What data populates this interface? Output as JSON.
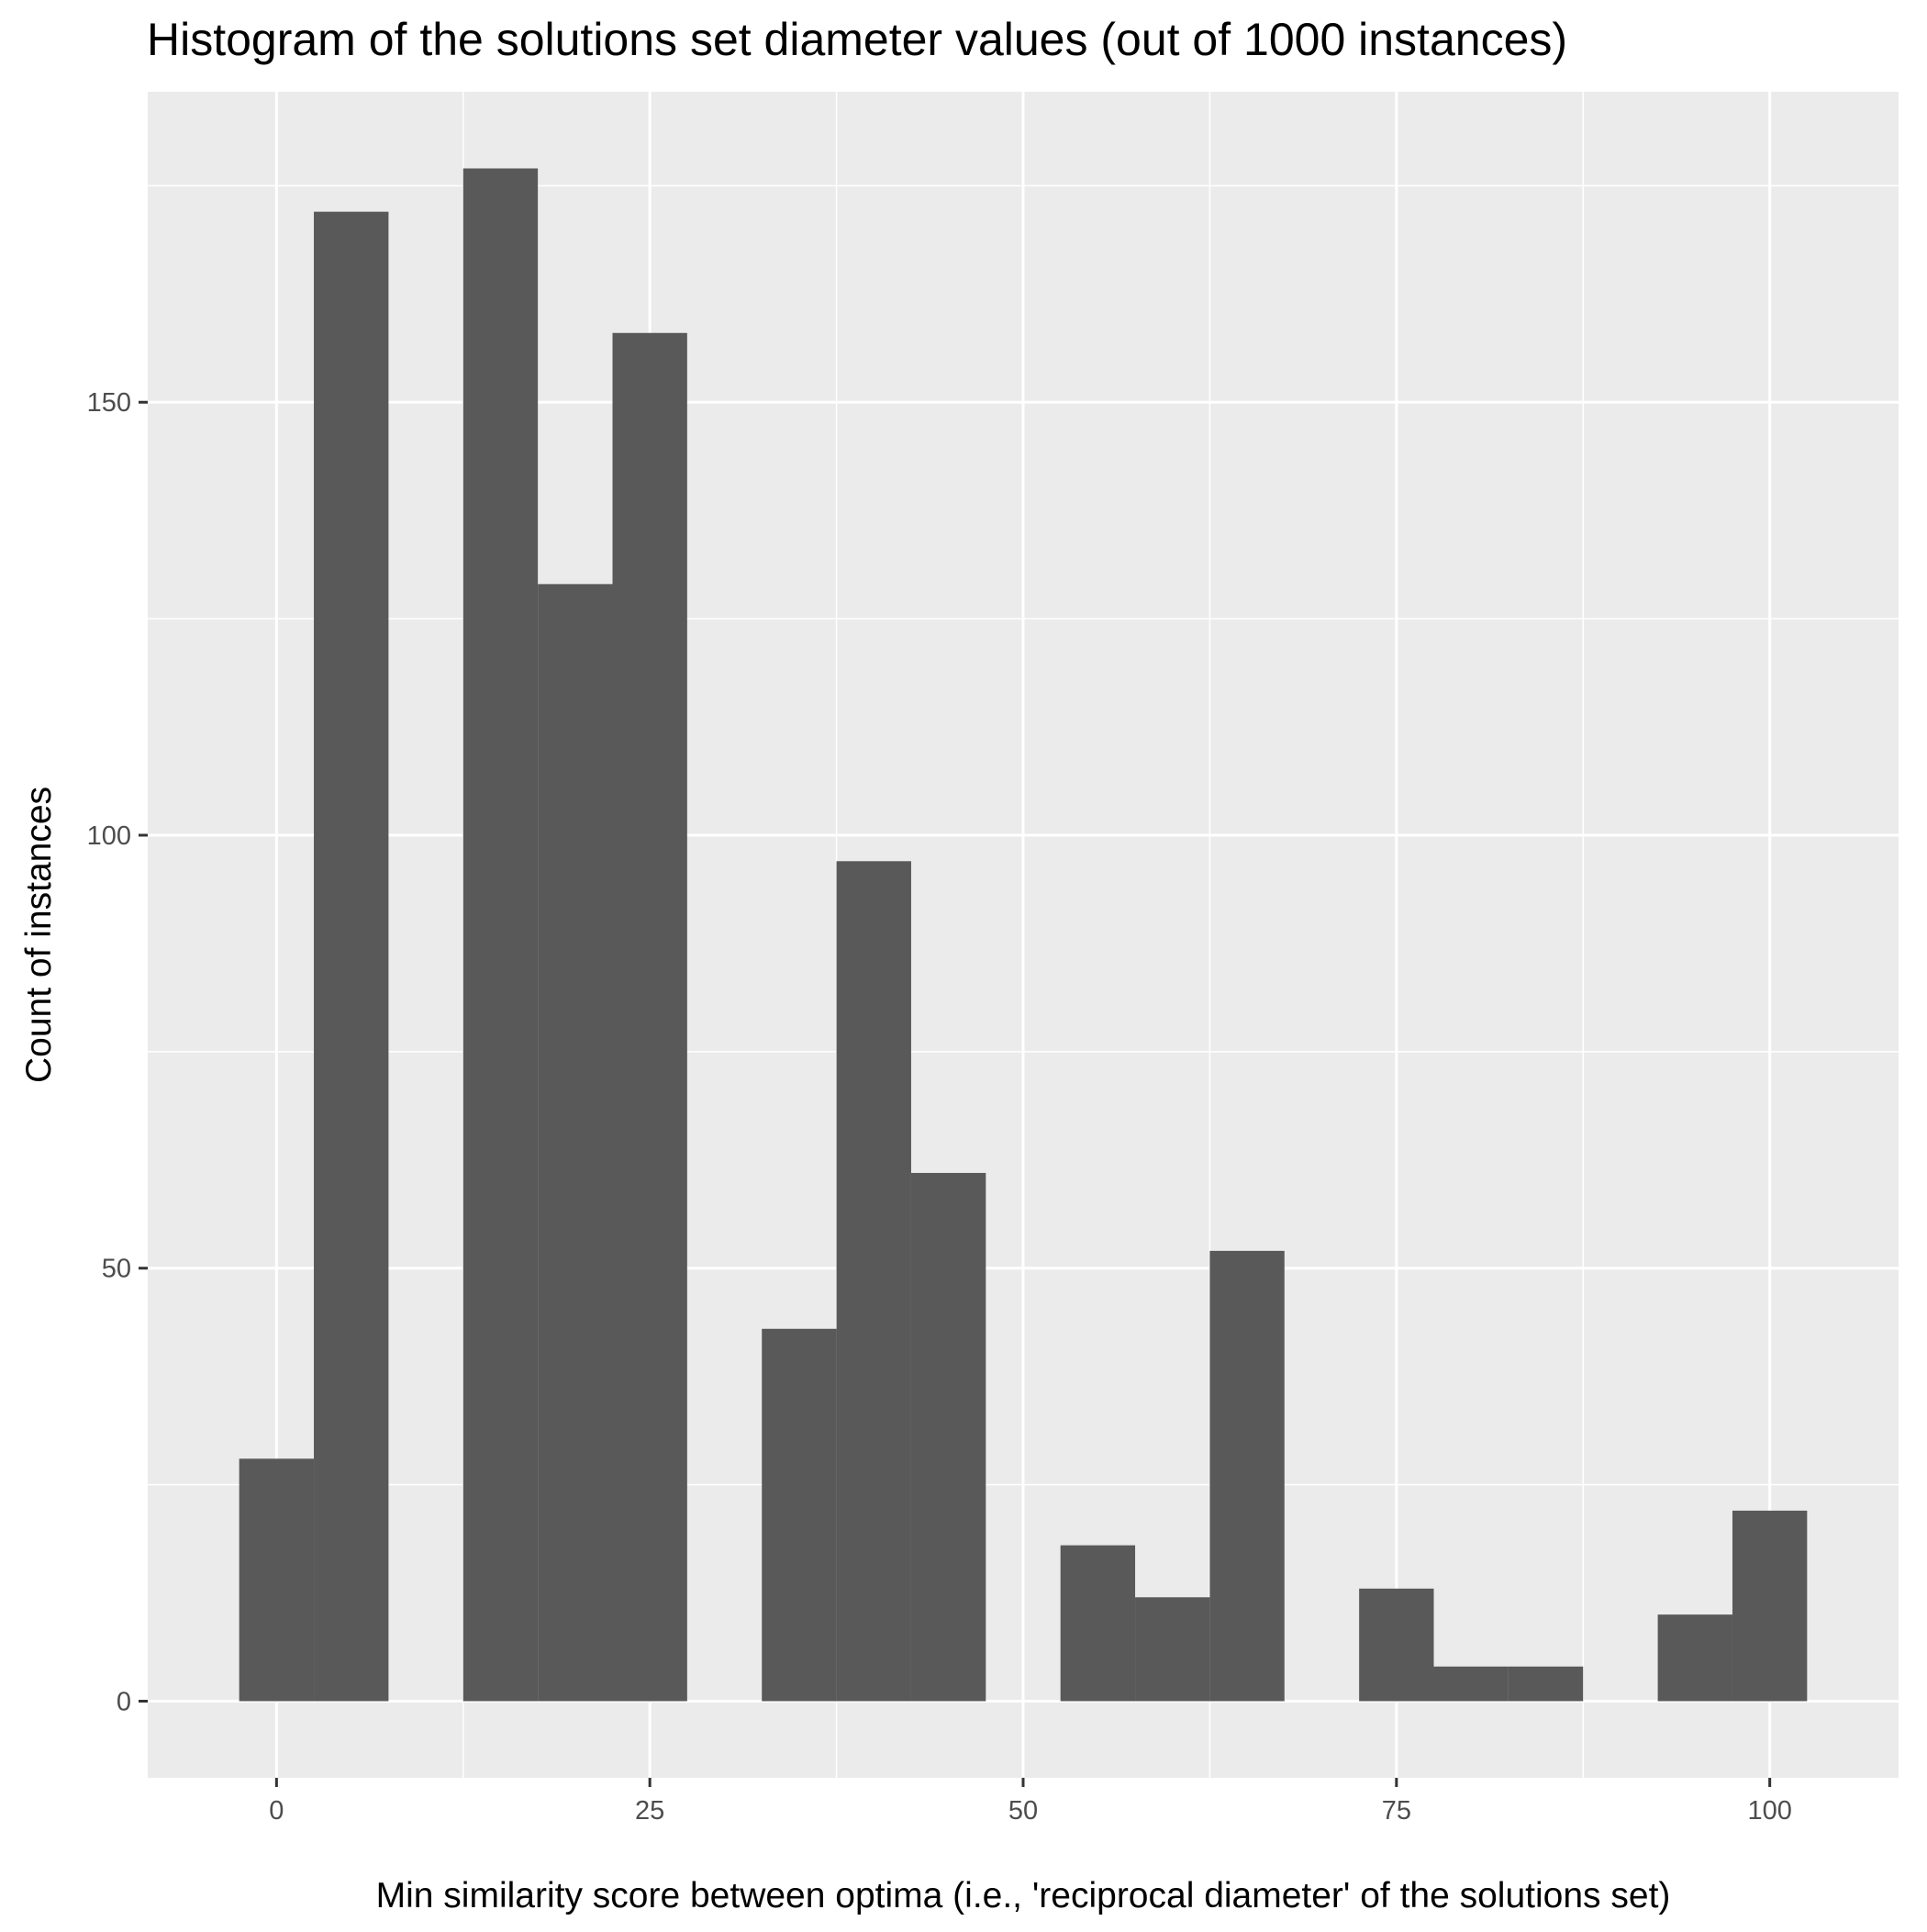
{
  "chart_data": {
    "type": "bar",
    "title": "Histogram of the solutions set diameter values (out of 1000 instances)",
    "xlabel": "Min similarity score between optima (i.e., 'reciprocal diameter' of the solutions set)",
    "ylabel": "Count of instances",
    "bin_width": 5,
    "bins": [
      {
        "x0": -2.5,
        "x1": 2.5,
        "count": 28
      },
      {
        "x0": 2.5,
        "x1": 7.5,
        "count": 172
      },
      {
        "x0": 7.5,
        "x1": 12.5,
        "count": 0
      },
      {
        "x0": 12.5,
        "x1": 17.5,
        "count": 177
      },
      {
        "x0": 17.5,
        "x1": 22.5,
        "count": 129
      },
      {
        "x0": 22.5,
        "x1": 27.5,
        "count": 158
      },
      {
        "x0": 27.5,
        "x1": 32.5,
        "count": 0
      },
      {
        "x0": 32.5,
        "x1": 37.5,
        "count": 43
      },
      {
        "x0": 37.5,
        "x1": 42.5,
        "count": 97
      },
      {
        "x0": 42.5,
        "x1": 47.5,
        "count": 61
      },
      {
        "x0": 47.5,
        "x1": 52.5,
        "count": 0
      },
      {
        "x0": 52.5,
        "x1": 57.5,
        "count": 18
      },
      {
        "x0": 57.5,
        "x1": 62.5,
        "count": 12
      },
      {
        "x0": 62.5,
        "x1": 67.5,
        "count": 52
      },
      {
        "x0": 67.5,
        "x1": 72.5,
        "count": 0
      },
      {
        "x0": 72.5,
        "x1": 77.5,
        "count": 13
      },
      {
        "x0": 77.5,
        "x1": 82.5,
        "count": 4
      },
      {
        "x0": 82.5,
        "x1": 87.5,
        "count": 4
      },
      {
        "x0": 87.5,
        "x1": 92.5,
        "count": 0
      },
      {
        "x0": 92.5,
        "x1": 97.5,
        "count": 10
      },
      {
        "x0": 97.5,
        "x1": 102.5,
        "count": 22
      }
    ],
    "xlim": [
      -8.625,
      108.625
    ],
    "ylim": [
      -8.85,
      185.85
    ],
    "x_ticks": [
      0,
      25,
      50,
      75,
      100
    ],
    "x_tick_labels": [
      "0",
      "25",
      "50",
      "75",
      "100"
    ],
    "y_ticks": [
      0,
      50,
      100,
      150
    ],
    "y_tick_labels": [
      "0",
      "50",
      "100",
      "150"
    ],
    "grid": true,
    "colors": {
      "bar": "#595959",
      "panel": "#ebebeb",
      "grid": "#ffffff",
      "tick_label": "#4d4d4d",
      "tick": "#333333"
    }
  }
}
